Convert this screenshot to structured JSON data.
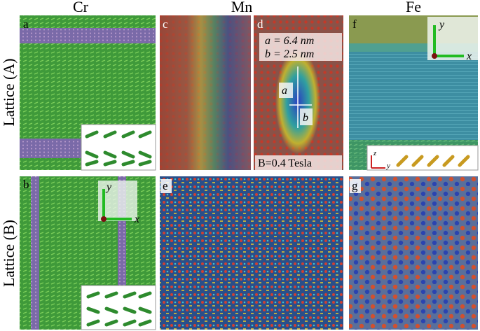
{
  "columns": [
    "Cr",
    "Mn",
    "Fe"
  ],
  "rows": [
    "Lattice (A)",
    "Lattice (B)"
  ],
  "panels": [
    "a",
    "b",
    "c",
    "d",
    "e",
    "f",
    "g"
  ],
  "panel_d": {
    "size_a": "a = 6.4 nm",
    "size_b": "b = 2.5 nm",
    "axis_a": "a",
    "axis_b": "b",
    "field": "B=0.4 Tesla"
  },
  "axes": {
    "x": "x",
    "y": "y",
    "z": "z"
  }
}
